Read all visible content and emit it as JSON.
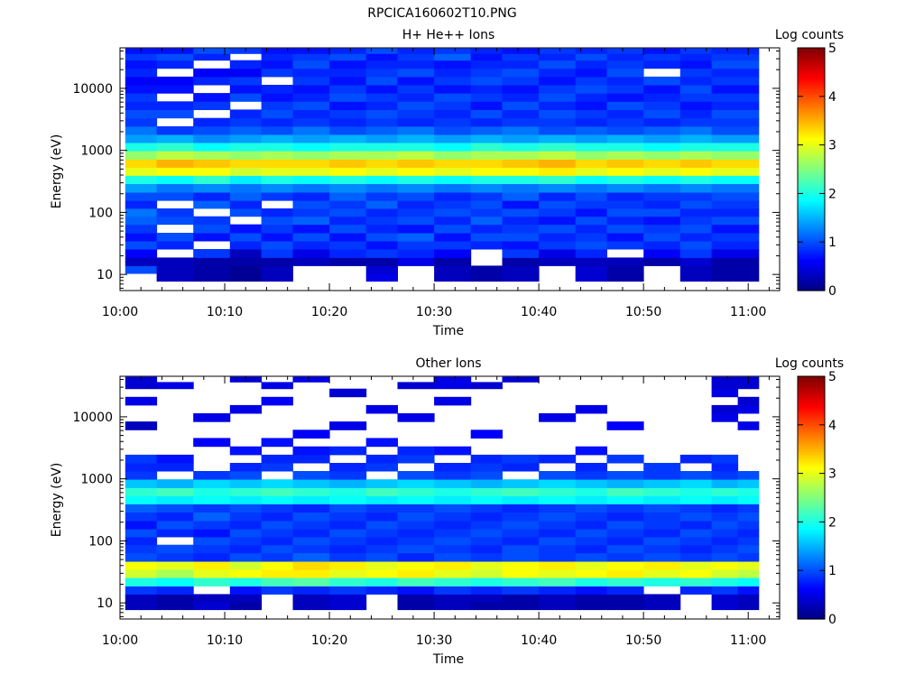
{
  "title": "RPCICA160602T10.PNG",
  "colorbar": {
    "label": "Log counts",
    "ticks": [
      "0",
      "1",
      "2",
      "3",
      "4",
      "5"
    ],
    "min": 0,
    "max": 5,
    "colormap": "jet"
  },
  "chart_data": [
    {
      "type": "heatmap",
      "title": "H+ He++ Ions",
      "xlabel": "Time",
      "ylabel": "Energy (eV)",
      "x_ticks": [
        "10:00",
        "10:10",
        "10:20",
        "10:30",
        "10:40",
        "10:50",
        "11:00"
      ],
      "y_ticks": [
        "10",
        "100",
        "1000",
        "10000"
      ],
      "y_scale": "log",
      "x_range": [
        "10:00",
        "11:03"
      ],
      "y_range": [
        5.5,
        45000
      ],
      "time_bins": [
        "10:02",
        "10:05",
        "10:09",
        "10:12",
        "10:15",
        "10:18",
        "10:22",
        "10:25",
        "10:28",
        "10:32",
        "10:35",
        "10:38",
        "10:42",
        "10:45",
        "10:48",
        "10:52",
        "10:55",
        "10:58",
        "11:00"
      ],
      "energy_bins_ev": [
        9,
        12,
        16,
        22,
        30,
        40,
        55,
        75,
        100,
        135,
        180,
        250,
        340,
        460,
        620,
        840,
        1150,
        1550,
        2100,
        2850,
        3900,
        5300,
        7200,
        9800,
        13300,
        18000,
        24500,
        33000,
        40000
      ],
      "values": [
        [
          0,
          1.0,
          0.3,
          0.6,
          1.0,
          0.7,
          0.9,
          1.1,
          1.2,
          0.8,
          1.0,
          1.4,
          2.0,
          3.0,
          3.3,
          2.6,
          2.0,
          1.4,
          1.2,
          0.9,
          1.0,
          0.8,
          0.9,
          0.7,
          0.6,
          0.8,
          0.7,
          0.9,
          0.7
        ],
        [
          0.3,
          0.3,
          0.3,
          0,
          0.8,
          1.0,
          0,
          1.0,
          0.9,
          0,
          1.0,
          1.2,
          1.9,
          3.1,
          3.5,
          2.8,
          2.1,
          1.5,
          0.9,
          0,
          1.0,
          0.8,
          0,
          0.7,
          0.6,
          0,
          0.8,
          1.0,
          0.7
        ],
        [
          0.2,
          0.2,
          0.2,
          0.9,
          0,
          0.7,
          1.0,
          0.9,
          0,
          1.1,
          0.8,
          1.3,
          2.1,
          3.1,
          3.4,
          2.7,
          1.9,
          1.3,
          1.0,
          0.8,
          0,
          0.9,
          0.7,
          0,
          0.8,
          0.6,
          0,
          0.8,
          1.0
        ],
        [
          0.1,
          0.1,
          0.2,
          0.3,
          0.8,
          1.0,
          0.7,
          0,
          1.0,
          0.8,
          1.1,
          1.2,
          1.8,
          2.9,
          3.3,
          2.6,
          2.0,
          1.4,
          1.1,
          0.9,
          0.8,
          0,
          1.0,
          0.7,
          0.9,
          0.6,
          0.8,
          0,
          0.9
        ],
        [
          0.3,
          0.3,
          0.2,
          0.9,
          1.0,
          0.7,
          0.9,
          1.0,
          0.8,
          0,
          0.9,
          1.3,
          2.0,
          3.0,
          3.3,
          2.7,
          2.0,
          1.5,
          1.0,
          0.8,
          1.0,
          0.9,
          0.7,
          0.8,
          0,
          0.9,
          0.7,
          0.8,
          0.7
        ],
        [
          0,
          0,
          0.3,
          0.5,
          0.8,
          1.0,
          0.7,
          1.1,
          0.9,
          1.0,
          0.8,
          1.2,
          1.9,
          3.0,
          3.3,
          2.6,
          1.9,
          1.4,
          1.2,
          0.9,
          0.8,
          1.0,
          0.8,
          0.7,
          0.9,
          0.8,
          1.0,
          0.9,
          0.7
        ],
        [
          0,
          0,
          0.2,
          0.8,
          0.9,
          0.7,
          1.0,
          0.8,
          1.0,
          0.9,
          1.1,
          1.3,
          2.0,
          3.1,
          3.4,
          2.7,
          2.0,
          1.5,
          1.0,
          0.8,
          0.9,
          0.7,
          1.0,
          0.9,
          0.7,
          0.8,
          0.7,
          1.0,
          0.8
        ],
        [
          0.5,
          0.4,
          0.2,
          0.9,
          0.7,
          1.0,
          0.8,
          0.9,
          0.8,
          1.1,
          0.9,
          1.2,
          1.9,
          3.0,
          3.3,
          2.7,
          2.0,
          1.4,
          1.1,
          0.9,
          1.0,
          0.8,
          0.9,
          0.7,
          1.0,
          0.9,
          0.8,
          0.7,
          1.0
        ],
        [
          0,
          0,
          0.5,
          0.8,
          0.9,
          1.1,
          0.7,
          1.0,
          0.9,
          0.8,
          1.0,
          1.3,
          2.0,
          3.1,
          3.4,
          2.8,
          2.0,
          1.5,
          1.2,
          0.8,
          0.9,
          1.0,
          0.8,
          0.9,
          0.7,
          1.0,
          0.8,
          0.9,
          0.8
        ],
        [
          0.3,
          0.3,
          0.2,
          0.6,
          0.9,
          0.7,
          1.0,
          0.8,
          1.0,
          0.9,
          0.8,
          1.2,
          1.9,
          3.0,
          3.3,
          2.6,
          1.9,
          1.4,
          1.0,
          0.9,
          0.8,
          0.9,
          1.0,
          0.7,
          0.9,
          0.8,
          0.7,
          1.1,
          0.9
        ],
        [
          0.2,
          0.2,
          0,
          0,
          0.8,
          1.0,
          0.8,
          1.1,
          0.9,
          1.0,
          0.9,
          1.3,
          2.0,
          3.1,
          3.3,
          2.7,
          2.1,
          1.5,
          1.1,
          0.8,
          1.0,
          0.7,
          0.9,
          0.8,
          1.0,
          0.9,
          0.8,
          0.7,
          0.8
        ],
        [
          0.3,
          0.3,
          0.2,
          0.9,
          0.7,
          1.0,
          0.9,
          0.8,
          1.0,
          0.7,
          1.1,
          1.2,
          2.0,
          3.1,
          3.4,
          2.7,
          2.0,
          1.4,
          1.2,
          0.9,
          0.8,
          1.0,
          0.8,
          0.7,
          0.9,
          1.0,
          0.8,
          0.9,
          0.7
        ],
        [
          0,
          0,
          0.3,
          0.5,
          0.9,
          0.8,
          1.0,
          0.7,
          0.9,
          1.0,
          0.8,
          1.3,
          2.1,
          3.2,
          3.5,
          2.8,
          2.1,
          1.5,
          1.0,
          0.9,
          1.0,
          0.8,
          1.0,
          0.9,
          0.7,
          0.8,
          1.0,
          0.8,
          0.9
        ],
        [
          0.4,
          0.4,
          0.3,
          0.8,
          1.0,
          0.9,
          0.8,
          1.0,
          0.7,
          0.9,
          1.0,
          1.2,
          1.9,
          3.0,
          3.3,
          2.6,
          2.0,
          1.4,
          1.1,
          0.8,
          0.9,
          0.7,
          0.8,
          1.0,
          0.9,
          0.7,
          0.8,
          1.0,
          0.8
        ],
        [
          0.2,
          0.2,
          0.3,
          0,
          0.9,
          0.7,
          1.0,
          0.8,
          1.0,
          0.9,
          0.8,
          1.3,
          2.0,
          3.1,
          3.4,
          2.7,
          2.0,
          1.5,
          1.0,
          0.9,
          0.8,
          1.0,
          0.7,
          0.9,
          0.8,
          1.0,
          0.9,
          0.8,
          0.9
        ],
        [
          0,
          0,
          0.2,
          0.6,
          0.8,
          1.0,
          0.9,
          0.7,
          1.0,
          0.8,
          0.9,
          1.2,
          1.9,
          3.0,
          3.3,
          2.6,
          1.9,
          1.4,
          1.1,
          0.8,
          1.0,
          0.9,
          0.8,
          0.7,
          1.0,
          0,
          0.8,
          0.9,
          0.7
        ],
        [
          0.3,
          0.3,
          0.4,
          0.9,
          1.0,
          0.8,
          1.0,
          0.9,
          0.8,
          1.0,
          0.9,
          1.3,
          2.0,
          3.1,
          3.4,
          2.7,
          2.0,
          1.5,
          1.2,
          0.9,
          0.8,
          0.7,
          0.9,
          1.0,
          0.8,
          0.9,
          0.7,
          0.8,
          0.9
        ],
        [
          0.2,
          0.2,
          0.2,
          0.5,
          0.8,
          0.9,
          0.7,
          1.0,
          0.8,
          0.9,
          1.0,
          1.2,
          1.9,
          3.0,
          3.3,
          2.6,
          2.0,
          1.4,
          1.0,
          0.9,
          1.0,
          0.8,
          0.9,
          0.7,
          0.9,
          0.8,
          1.0,
          0.9,
          0.8
        ],
        [
          0.2,
          0.2,
          0.2,
          0.5,
          0.8,
          0.9,
          0.7,
          1.0,
          0.8,
          0.9,
          1.0,
          1.2,
          1.9,
          3.0,
          3.3,
          2.6,
          2.0,
          1.4,
          1.0,
          0.9,
          1.0,
          0.8,
          0.9,
          0.7,
          0.9,
          0.8,
          1.0,
          0.9,
          0.8
        ]
      ]
    },
    {
      "type": "heatmap",
      "title": "Other Ions",
      "xlabel": "Time",
      "ylabel": "Energy (eV)",
      "x_ticks": [
        "10:00",
        "10:10",
        "10:20",
        "10:30",
        "10:40",
        "10:50",
        "11:00"
      ],
      "y_ticks": [
        "10",
        "100",
        "1000",
        "10000"
      ],
      "y_scale": "log",
      "x_range": [
        "10:00",
        "11:03"
      ],
      "y_range": [
        5.5,
        45000
      ],
      "time_bins": [
        "10:02",
        "10:05",
        "10:09",
        "10:12",
        "10:15",
        "10:18",
        "10:22",
        "10:25",
        "10:28",
        "10:32",
        "10:35",
        "10:38",
        "10:42",
        "10:45",
        "10:48",
        "10:52",
        "10:55",
        "10:58",
        "11:00"
      ],
      "energy_bins_ev": [
        9,
        12,
        16,
        22,
        30,
        40,
        55,
        75,
        100,
        135,
        180,
        250,
        340,
        460,
        620,
        840,
        1150,
        1550,
        2100,
        2850,
        3900,
        5300,
        7200,
        9800,
        13300,
        18000,
        24500,
        33000,
        40000
      ],
      "values": [
        [
          0.3,
          0.3,
          0.9,
          2.0,
          2.9,
          3.1,
          1.0,
          0.9,
          0.8,
          1.0,
          0.7,
          0.9,
          1.1,
          1.9,
          2.1,
          1.6,
          0.9,
          0.8,
          0.9,
          0,
          0,
          0,
          0.3,
          0,
          0,
          0.5,
          0,
          0.4,
          0.4
        ],
        [
          0.2,
          0.2,
          0.8,
          1.9,
          2.7,
          3.0,
          0.9,
          1.0,
          0,
          0.8,
          1.0,
          0.8,
          1.0,
          1.8,
          2.2,
          1.5,
          0,
          0.8,
          0.7,
          0,
          0,
          0,
          0,
          0,
          0,
          0,
          0,
          0.5,
          0
        ],
        [
          0.4,
          0.3,
          0,
          2.1,
          3.0,
          3.2,
          0.8,
          0.9,
          1.0,
          0.7,
          0.9,
          1.1,
          0.9,
          1.9,
          2.0,
          1.7,
          0.9,
          0,
          0,
          0,
          0.6,
          0,
          0,
          0.5,
          0,
          0,
          0,
          0,
          0
        ],
        [
          0.2,
          0.3,
          0.7,
          2.0,
          3.1,
          2.9,
          1.0,
          0.8,
          0.9,
          1.0,
          0.8,
          0.9,
          1.0,
          1.8,
          2.1,
          1.6,
          1.0,
          0.8,
          0,
          0.7,
          0,
          0,
          0,
          0,
          0.5,
          0,
          0,
          0,
          0.4
        ],
        [
          0,
          0,
          0.9,
          2.2,
          3.2,
          3.1,
          0.9,
          1.0,
          0.8,
          0.9,
          1.0,
          0.8,
          0.9,
          1.9,
          2.2,
          1.7,
          0,
          0.9,
          0.8,
          0,
          0.7,
          0,
          0,
          0,
          0,
          0.6,
          0,
          0.5,
          0
        ],
        [
          0.3,
          0.3,
          0.8,
          2.3,
          3.2,
          3.3,
          1.1,
          0.9,
          1.0,
          0.8,
          0.9,
          1.0,
          0.8,
          1.8,
          2.1,
          1.6,
          1.0,
          0,
          0.8,
          0.7,
          0,
          0.6,
          0,
          0,
          0,
          0,
          0,
          0,
          0.5
        ],
        [
          0.4,
          0.4,
          0.9,
          2.1,
          3.0,
          3.2,
          0.9,
          0.8,
          0.9,
          1.0,
          0.8,
          0.9,
          1.0,
          1.9,
          2.0,
          1.5,
          0.9,
          0.8,
          0,
          0.8,
          0,
          0,
          0.5,
          0,
          0,
          0,
          0.4,
          0,
          0
        ],
        [
          0,
          0,
          0.8,
          2.0,
          3.1,
          3.0,
          1.0,
          0.9,
          0.8,
          0.9,
          1.0,
          0.8,
          0.9,
          1.8,
          2.2,
          1.6,
          0,
          0.9,
          0.8,
          0,
          0.7,
          0,
          0,
          0,
          0.5,
          0,
          0,
          0,
          0
        ],
        [
          0.2,
          0.2,
          0.7,
          2.2,
          3.2,
          3.1,
          0.8,
          1.0,
          0.9,
          0.8,
          0.9,
          1.0,
          0.9,
          1.9,
          2.1,
          1.7,
          1.0,
          0,
          0.9,
          0.8,
          0,
          0,
          0,
          0.5,
          0,
          0,
          0,
          0.4,
          0
        ],
        [
          0.3,
          0.3,
          0.9,
          2.1,
          3.0,
          3.2,
          1.0,
          0.9,
          1.0,
          0.9,
          0.8,
          0.9,
          1.0,
          1.8,
          2.0,
          1.6,
          0.9,
          0.8,
          0,
          0.7,
          0,
          0,
          0,
          0,
          0,
          0.5,
          0,
          0.5,
          0.5
        ],
        [
          0.2,
          0.3,
          0.8,
          2.0,
          2.9,
          3.0,
          0.9,
          0.8,
          0.9,
          1.0,
          0.9,
          0.8,
          0.9,
          1.9,
          2.1,
          1.5,
          1.0,
          0.9,
          0.8,
          0,
          0,
          0.6,
          0,
          0,
          0,
          0,
          0,
          0.4,
          0
        ],
        [
          0.2,
          0.2,
          0.9,
          2.1,
          3.1,
          3.1,
          1.0,
          1.0,
          0.8,
          0.9,
          1.0,
          0.9,
          0.8,
          1.8,
          2.2,
          1.6,
          0,
          0.8,
          0.9,
          0,
          0,
          0,
          0,
          0,
          0,
          0,
          0,
          0,
          0.4
        ],
        [
          0.3,
          0.3,
          0.8,
          2.2,
          3.0,
          3.2,
          0.9,
          0.9,
          1.0,
          0.8,
          0.9,
          1.0,
          0.9,
          1.9,
          2.1,
          1.7,
          1.0,
          0,
          0.8,
          0,
          0,
          0,
          0,
          0.5,
          0,
          0,
          0,
          0,
          0
        ],
        [
          0.2,
          0.2,
          0.7,
          2.0,
          3.1,
          3.0,
          1.0,
          0.8,
          0.9,
          1.0,
          0.8,
          0.9,
          1.0,
          1.8,
          2.0,
          1.6,
          0.9,
          0.8,
          0,
          0.7,
          0,
          0,
          0,
          0,
          0.5,
          0,
          0,
          0,
          0
        ],
        [
          0.2,
          0.2,
          0.8,
          2.1,
          3.2,
          3.1,
          0.9,
          1.0,
          0.8,
          0.9,
          1.0,
          0.8,
          0.9,
          1.9,
          2.2,
          1.5,
          1.0,
          0,
          0.9,
          0,
          0,
          0,
          0.6,
          0,
          0,
          0,
          0,
          0,
          0
        ],
        [
          0.3,
          0.3,
          0,
          2.0,
          3.0,
          3.2,
          1.0,
          0.9,
          1.0,
          0.8,
          0.9,
          0.9,
          1.0,
          1.8,
          2.1,
          1.6,
          0.9,
          0.9,
          0,
          0,
          0,
          0,
          0,
          0,
          0,
          0,
          0,
          0,
          0
        ],
        [
          0,
          0,
          0.8,
          2.1,
          3.1,
          3.0,
          0.9,
          0.8,
          0.9,
          1.0,
          0.8,
          1.0,
          0.9,
          1.9,
          2.0,
          1.7,
          1.0,
          0,
          0.8,
          0,
          0,
          0,
          0,
          0,
          0,
          0,
          0,
          0,
          0
        ],
        [
          0.4,
          0.4,
          0.9,
          2.0,
          2.9,
          3.1,
          1.0,
          0.9,
          0.8,
          0.9,
          1.0,
          0.9,
          0.8,
          1.8,
          2.1,
          1.5,
          0.9,
          0.8,
          0.9,
          0,
          0,
          0,
          0,
          0.5,
          0.4,
          0,
          0.5,
          0.4,
          0.4
        ],
        [
          0.3,
          0.3,
          0.7,
          1.9,
          2.8,
          3.0,
          0.9,
          1.0,
          0.9,
          0.8,
          0.9,
          1.0,
          0.9,
          1.9,
          2.0,
          1.6,
          1.0,
          0,
          0,
          0,
          0,
          0,
          0.5,
          0,
          0.5,
          0.4,
          0,
          0.4,
          0.4
        ]
      ]
    }
  ]
}
